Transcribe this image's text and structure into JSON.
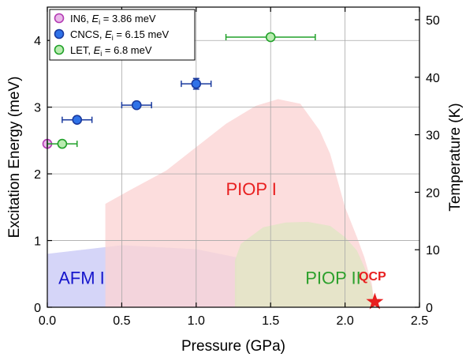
{
  "chart_data": {
    "type": "scatter",
    "title": "",
    "xlabel": "Pressure (GPa)",
    "ylabel": "Excitation Energy (meV)",
    "y2label": "Temperature (K)",
    "xlim": [
      0,
      2.5
    ],
    "ylim": [
      0,
      4.5
    ],
    "y2lim": [
      0,
      52.2
    ],
    "xticks": [
      "0.0",
      "0.5",
      "1.0",
      "1.5",
      "2.0",
      "2.5"
    ],
    "yticks": [
      "0",
      "1",
      "2",
      "3",
      "4"
    ],
    "y2ticks": [
      "0",
      "10",
      "20",
      "30",
      "40",
      "50"
    ],
    "grid": true,
    "legend_position": "top-left",
    "series": [
      {
        "name": "IN6, E_i = 3.86 meV",
        "label_main": "IN6, ",
        "label_sub": "i",
        "label_rest": " = 3.86 meV",
        "color": "#b33bb3",
        "fill": "#e9b8e9",
        "marker": "circle",
        "points": [
          {
            "x": 0.0,
            "y": 2.45,
            "xerr": 0.0,
            "yerr": 0.0
          }
        ]
      },
      {
        "name": "CNCS, E_i = 6.15 meV",
        "label_main": "CNCS, ",
        "label_sub": "i",
        "label_rest": " = 6.15 meV",
        "color": "#1a3a9e",
        "fill": "#2f72e8",
        "marker": "circle",
        "points": [
          {
            "x": 0.2,
            "y": 2.81,
            "xerr": 0.1,
            "yerr": 0.0
          },
          {
            "x": 0.6,
            "y": 3.03,
            "xerr": 0.1,
            "yerr": 0.0
          },
          {
            "x": 1.0,
            "y": 3.35,
            "xerr": 0.1,
            "yerr": 0.08
          }
        ]
      },
      {
        "name": "LET, E_i = 6.8 meV",
        "label_main": "LET, ",
        "label_sub": "i",
        "label_rest": " = 6.8 meV",
        "color": "#21a12a",
        "fill": "#b9ecb0",
        "marker": "circle",
        "points": [
          {
            "x": 0.1,
            "y": 2.45,
            "xerr": 0.1,
            "yerr": 0.05
          },
          {
            "x": 1.5,
            "y": 4.05,
            "xerr": 0.3,
            "yerr": 0.0
          }
        ]
      }
    ],
    "phase_regions": [
      {
        "label": "AFM I",
        "fill": "#c9c9f6",
        "label_color": "#1515cc",
        "label_at": {
          "x": 0.23,
          "y": 0.35
        },
        "boundary": [
          [
            0,
            0
          ],
          [
            0,
            0.8
          ],
          [
            0.5,
            0.93
          ],
          [
            1.0,
            0.87
          ],
          [
            1.27,
            0.75
          ],
          [
            1.27,
            0
          ]
        ]
      },
      {
        "label": "PIOP I",
        "fill": "#fbd4d4",
        "label_color": "#e81f1f",
        "label_at": {
          "x": 1.37,
          "y": 1.68
        },
        "boundary": [
          [
            0.39,
            0
          ],
          [
            0.39,
            1.55
          ],
          [
            0.55,
            1.75
          ],
          [
            0.8,
            2.05
          ],
          [
            1.0,
            2.4
          ],
          [
            1.2,
            2.75
          ],
          [
            1.4,
            3.02
          ],
          [
            1.55,
            3.12
          ],
          [
            1.7,
            3.05
          ],
          [
            1.83,
            2.65
          ],
          [
            1.9,
            2.3
          ],
          [
            1.95,
            1.9
          ],
          [
            2.0,
            1.5
          ],
          [
            2.08,
            1.05
          ],
          [
            2.13,
            0.75
          ],
          [
            2.18,
            0.35
          ],
          [
            2.2,
            0
          ]
        ]
      },
      {
        "label": "PIOP II",
        "fill": "#dfe6c3",
        "label_color": "#2ca02c",
        "label_at": {
          "x": 1.92,
          "y": 0.35
        },
        "boundary": [
          [
            1.26,
            0
          ],
          [
            1.26,
            0.7
          ],
          [
            1.3,
            0.95
          ],
          [
            1.45,
            1.2
          ],
          [
            1.6,
            1.27
          ],
          [
            1.75,
            1.28
          ],
          [
            1.9,
            1.22
          ],
          [
            2.0,
            1.05
          ],
          [
            2.08,
            0.85
          ],
          [
            2.13,
            0.6
          ],
          [
            2.18,
            0.3
          ],
          [
            2.2,
            0
          ]
        ]
      }
    ],
    "annotations": [
      {
        "text": "QCP",
        "x": 2.2,
        "y": 0.08,
        "color": "#e81f1f",
        "marker": "star"
      }
    ]
  }
}
